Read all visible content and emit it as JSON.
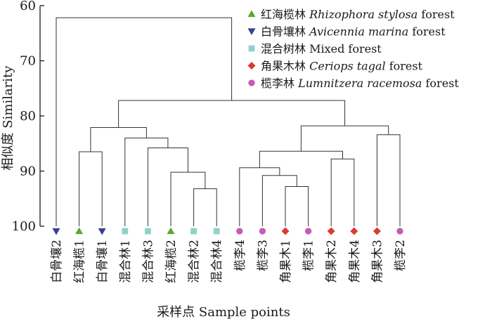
{
  "chart_data": {
    "type": "dendrogram",
    "xlabel": "采样点 Sample points",
    "ylabel": "相似度 Similarity",
    "ylim": [
      60,
      100
    ],
    "y_ticks": [
      60,
      70,
      80,
      90,
      100
    ],
    "y_inverted": true,
    "grid": false,
    "legend_position": "top-right",
    "groups": {
      "rhizophora": {
        "label_cn": "红海榄林",
        "label_latin": "Rhizophora stylosa",
        "label_suffix": "forest",
        "color": "#5aa832",
        "marker": "triangle-up"
      },
      "avicennia": {
        "label_cn": "白骨壤林",
        "label_latin": "Avicennia marina",
        "label_suffix": "forest",
        "color": "#3a3f8f",
        "marker": "triangle-down"
      },
      "mixed": {
        "label_cn": "混合树林",
        "label_latin": "",
        "label_suffix": "Mixed forest",
        "color": "#8fd3c8",
        "marker": "square"
      },
      "ceriops": {
        "label_cn": "角果木林",
        "label_latin": "Ceriops tagal",
        "label_suffix": "forest",
        "color": "#e03a2f",
        "marker": "diamond"
      },
      "lumnitzera": {
        "label_cn": "榄李林",
        "label_latin": "Lumnitzera racemosa",
        "label_suffix": "forest",
        "color": "#c45bb8",
        "marker": "circle"
      }
    },
    "legend_order": [
      "rhizophora",
      "avicennia",
      "mixed",
      "ceriops",
      "lumnitzera"
    ],
    "leaves": [
      {
        "label": "白骨壤2",
        "group": "avicennia"
      },
      {
        "label": "红海榄1",
        "group": "rhizophora"
      },
      {
        "label": "白骨壤1",
        "group": "avicennia"
      },
      {
        "label": "混合林1",
        "group": "mixed"
      },
      {
        "label": "混合林3",
        "group": "mixed"
      },
      {
        "label": "红海榄2",
        "group": "rhizophora"
      },
      {
        "label": "混合林2",
        "group": "mixed"
      },
      {
        "label": "混合林4",
        "group": "mixed"
      },
      {
        "label": "榄李4",
        "group": "lumnitzera"
      },
      {
        "label": "榄李3",
        "group": "lumnitzera"
      },
      {
        "label": "角果木1",
        "group": "ceriops"
      },
      {
        "label": "榄李1",
        "group": "lumnitzera"
      },
      {
        "label": "角果木2",
        "group": "ceriops"
      },
      {
        "label": "角果木4",
        "group": "ceriops"
      },
      {
        "label": "角果木3",
        "group": "ceriops"
      },
      {
        "label": "榄李2",
        "group": "lumnitzera"
      }
    ],
    "merges": [
      [
        1,
        2,
        86.5
      ],
      [
        6,
        7,
        93.2
      ],
      [
        5,
        17,
        90.2
      ],
      [
        4,
        18,
        85.8
      ],
      [
        3,
        19,
        84.0
      ],
      [
        16,
        20,
        82.1
      ],
      [
        10,
        11,
        92.8
      ],
      [
        9,
        22,
        90.8
      ],
      [
        8,
        23,
        89.4
      ],
      [
        12,
        13,
        87.8
      ],
      [
        24,
        25,
        86.4
      ],
      [
        14,
        15,
        83.4
      ],
      [
        26,
        27,
        81.8
      ],
      [
        21,
        28,
        77.2
      ],
      [
        0,
        29,
        62.2
      ]
    ]
  }
}
